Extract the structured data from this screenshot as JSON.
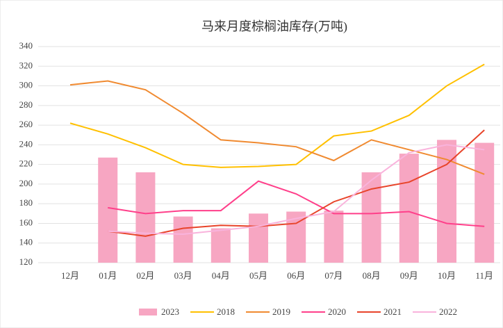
{
  "chart_data": {
    "type": "bar-line",
    "title": "马来月度棕榈油库存(万吨)",
    "categories": [
      "12月",
      "01月",
      "02月",
      "03月",
      "04月",
      "05月",
      "06月",
      "07月",
      "08月",
      "09月",
      "10月",
      "11月"
    ],
    "ylim": [
      120,
      340
    ],
    "yticks": [
      120,
      140,
      160,
      180,
      200,
      220,
      240,
      260,
      280,
      300,
      320,
      340
    ],
    "grid": true,
    "legend": "bottom",
    "series": [
      {
        "name": "2023",
        "type": "bar",
        "color": "#f7a6c2",
        "values": [
          null,
          227,
          212,
          167,
          155,
          170,
          172,
          173,
          212,
          231,
          245,
          242
        ]
      },
      {
        "name": "2018",
        "type": "line",
        "color": "#ffc000",
        "values": [
          262,
          251,
          237,
          220,
          217,
          218,
          220,
          249,
          254,
          270,
          300,
          322
        ]
      },
      {
        "name": "2019",
        "type": "line",
        "color": "#f08a30",
        "values": [
          301,
          305,
          296,
          272,
          245,
          242,
          238,
          224,
          245,
          235,
          225,
          210
        ]
      },
      {
        "name": "2020",
        "type": "line",
        "color": "#ff3f8a",
        "values": [
          null,
          176,
          170,
          173,
          173,
          203,
          190,
          170,
          170,
          172,
          160,
          157
        ]
      },
      {
        "name": "2021",
        "type": "line",
        "color": "#e8442a",
        "values": [
          null,
          152,
          147,
          155,
          158,
          157,
          160,
          182,
          195,
          202,
          220,
          255
        ]
      },
      {
        "name": "2022",
        "type": "line",
        "color": "#f9b3dc",
        "values": [
          null,
          152,
          150,
          149,
          153,
          157,
          165,
          172,
          204,
          232,
          240,
          235
        ]
      }
    ]
  }
}
